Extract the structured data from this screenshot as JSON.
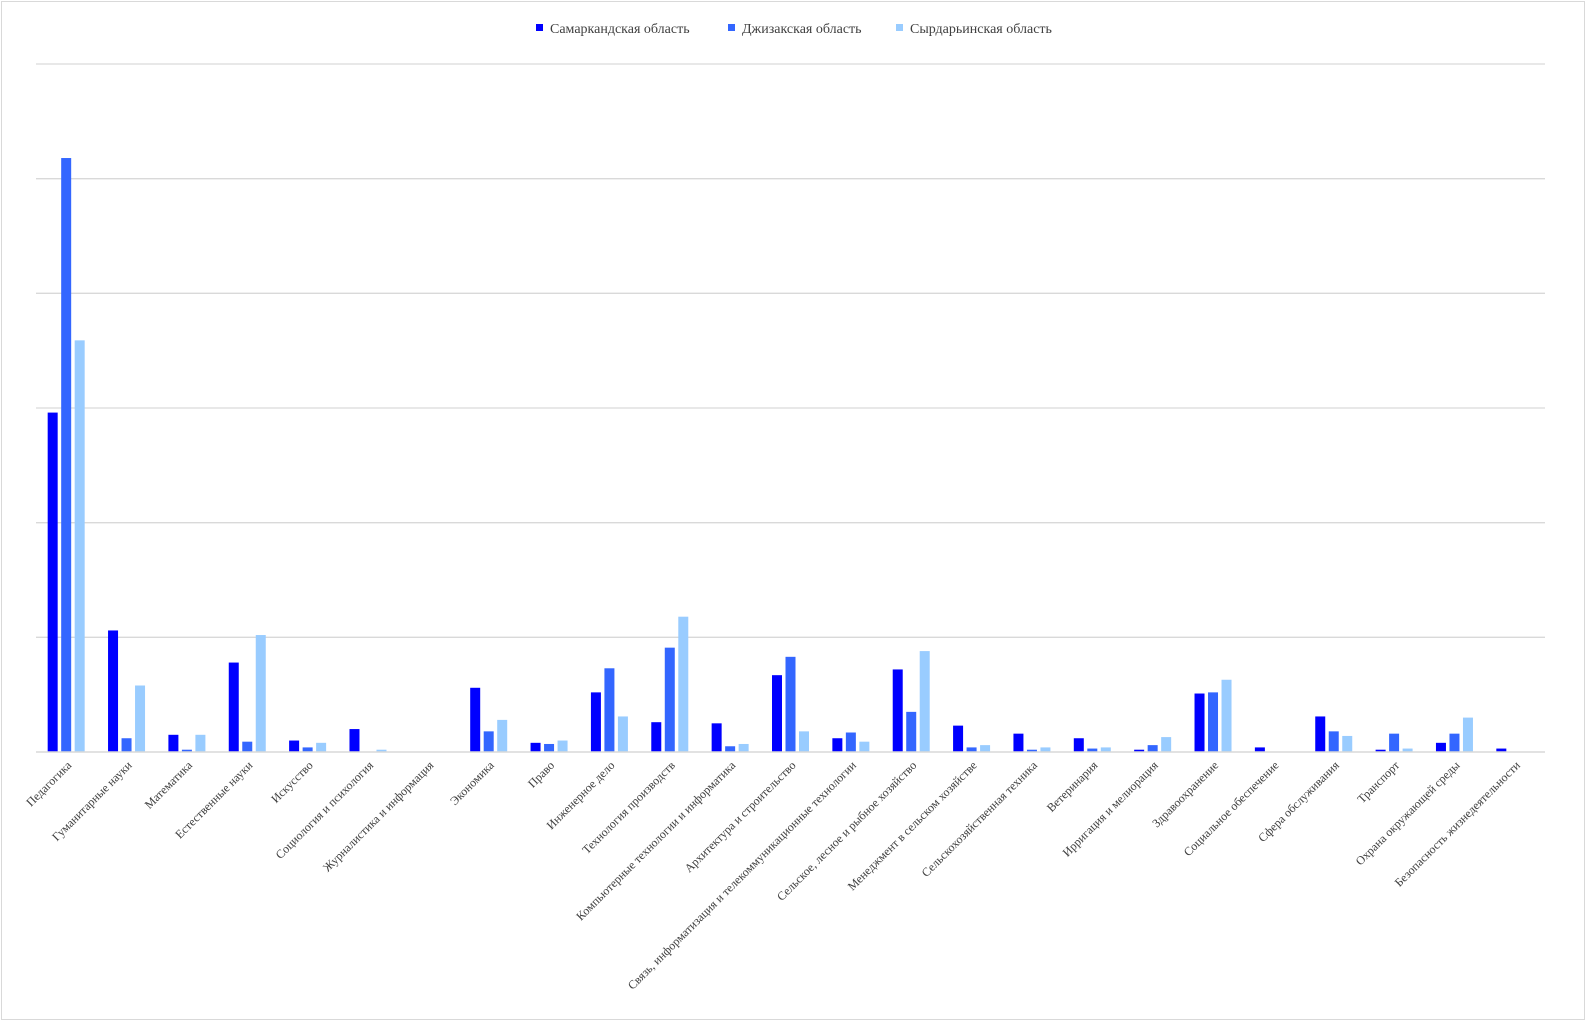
{
  "chart_data": {
    "type": "bar",
    "title": "",
    "xlabel": "",
    "ylabel": "",
    "ylim": [
      0,
      6
    ],
    "y_tick_labels_visible": false,
    "grid": "horizontal",
    "legend_position": "top-center",
    "categories": [
      "Педагогика",
      "Гуманитарные науки",
      "Математика",
      "Естественные науки",
      "Искусство",
      "Социология и психология",
      "Журналистика и информация",
      "Экономика",
      "Право",
      "Инженерное дело",
      "Технология производств",
      "Компьютерные технологии и информатика",
      "Архитектура и строительство",
      "Связь, информатизация и телекоммуникационные технологии",
      "Сельское, лесное и рыбное хозяйство",
      "Менеджмент в сельском хозяйстве",
      "Сельскохозяйственная техника",
      "Ветеринария",
      "Ирригация и мелиорация",
      "Здравоохранение",
      "Социальное обеспечение",
      "Сфера обслуживания",
      "Транспорт",
      "Охрана окружающей среды",
      "Безопасность жизнедеятельности"
    ],
    "series": [
      {
        "name": "Самаркандская область",
        "color": "#0000ff",
        "values": [
          2.96,
          1.06,
          0.15,
          0.78,
          0.1,
          0.2,
          0.0,
          0.56,
          0.08,
          0.52,
          0.26,
          0.25,
          0.67,
          0.12,
          0.72,
          0.23,
          0.16,
          0.12,
          0.02,
          0.51,
          0.04,
          0.31,
          0.02,
          0.08,
          0.03
        ]
      },
      {
        "name": "Джизакская область",
        "color": "#3366ff",
        "values": [
          5.18,
          0.12,
          0.02,
          0.09,
          0.04,
          0.0,
          0.0,
          0.18,
          0.07,
          0.73,
          0.91,
          0.05,
          0.83,
          0.17,
          0.35,
          0.04,
          0.02,
          0.03,
          0.06,
          0.52,
          0.0,
          0.18,
          0.16,
          0.16,
          0.0
        ]
      },
      {
        "name": "Сырдарьинская область",
        "color": "#99ccff",
        "values": [
          3.59,
          0.58,
          0.15,
          1.02,
          0.08,
          0.02,
          0.0,
          0.28,
          0.1,
          0.31,
          1.18,
          0.07,
          0.18,
          0.09,
          0.88,
          0.06,
          0.04,
          0.04,
          0.13,
          0.63,
          0.0,
          0.14,
          0.03,
          0.3,
          0.0
        ]
      }
    ]
  }
}
